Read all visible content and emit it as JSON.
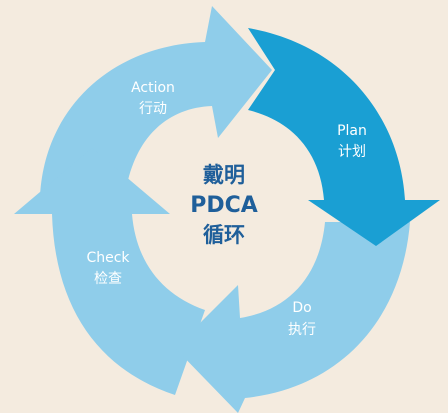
{
  "center": {
    "line1": "戴明",
    "line2": "PDCA",
    "line3": "循环"
  },
  "stages": [
    {
      "id": "plan",
      "en": "Plan",
      "zh": "计划",
      "color": "#1a9fd3"
    },
    {
      "id": "do",
      "en": "Do",
      "zh": "执行",
      "color": "#8fcdea"
    },
    {
      "id": "check",
      "en": "Check",
      "zh": "检查",
      "color": "#8fcdea"
    },
    {
      "id": "action",
      "en": "Action",
      "zh": "行动",
      "color": "#8fcdea"
    }
  ],
  "colors": {
    "background": "#f4ebdf",
    "highlight": "#1a9fd3",
    "segment": "#8fcdea",
    "center_text": "#1f5f9a"
  }
}
